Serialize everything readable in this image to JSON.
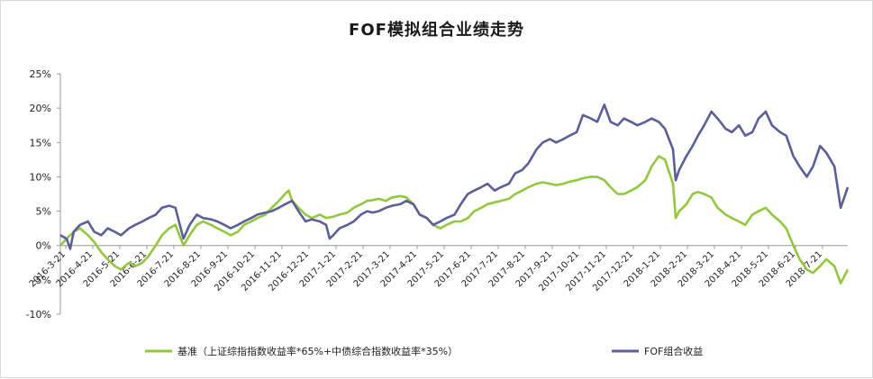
{
  "chart_data": {
    "type": "line",
    "title": "FOF模拟组合业绩走势",
    "xlabel": "",
    "ylabel": "",
    "ylim": [
      -0.1,
      0.25
    ],
    "yticks": [
      -0.1,
      -0.05,
      0.0,
      0.05,
      0.1,
      0.15,
      0.2,
      0.25
    ],
    "ytick_labels": [
      "-10%",
      "-5%",
      "0%",
      "5%",
      "10%",
      "15%",
      "20%",
      "25%"
    ],
    "xlim": [
      "2016-03-21",
      "2018-08-21"
    ],
    "xtick_labels": [
      "2016-3-21",
      "2016-4-21",
      "2016-5-21",
      "2016-6-21",
      "2016-7-21",
      "2016-8-21",
      "2016-9-21",
      "2016-10-21",
      "2016-11-21",
      "2016-12-21",
      "2017-1-21",
      "2017-2-21",
      "2017-3-21",
      "2017-4-21",
      "2017-5-21",
      "2017-6-21",
      "2017-7-21",
      "2017-8-21",
      "2017-9-21",
      "2017-10-21",
      "2017-11-21",
      "2017-12-21",
      "2018-1-21",
      "2018-2-21",
      "2018-3-21",
      "2018-4-21",
      "2018-5-21",
      "2018-6-21",
      "2018-7-21"
    ],
    "grid": false,
    "legend_position": "bottom",
    "series": [
      {
        "name": "基准（上证综指指数收益率*65%+中债综合指数收益率*35%）",
        "color": "#92c83e",
        "points": [
          [
            "2016-03-21",
            0.0
          ],
          [
            "2016-03-28",
            0.01
          ],
          [
            "2016-04-05",
            0.02
          ],
          [
            "2016-04-12",
            0.025
          ],
          [
            "2016-04-21",
            0.015
          ],
          [
            "2016-04-28",
            0.005
          ],
          [
            "2016-05-06",
            -0.01
          ],
          [
            "2016-05-13",
            -0.02
          ],
          [
            "2016-05-21",
            -0.03
          ],
          [
            "2016-05-28",
            -0.035
          ],
          [
            "2016-06-06",
            -0.025
          ],
          [
            "2016-06-13",
            -0.03
          ],
          [
            "2016-06-21",
            -0.025
          ],
          [
            "2016-06-28",
            -0.015
          ],
          [
            "2016-07-06",
            0.0
          ],
          [
            "2016-07-13",
            0.015
          ],
          [
            "2016-07-21",
            0.025
          ],
          [
            "2016-07-28",
            0.03
          ],
          [
            "2016-08-06",
            0.0
          ],
          [
            "2016-08-13",
            0.015
          ],
          [
            "2016-08-21",
            0.03
          ],
          [
            "2016-08-28",
            0.035
          ],
          [
            "2016-09-06",
            0.03
          ],
          [
            "2016-09-13",
            0.025
          ],
          [
            "2016-09-21",
            0.02
          ],
          [
            "2016-09-28",
            0.015
          ],
          [
            "2016-10-06",
            0.02
          ],
          [
            "2016-10-13",
            0.03
          ],
          [
            "2016-10-21",
            0.035
          ],
          [
            "2016-10-28",
            0.04
          ],
          [
            "2016-11-06",
            0.045
          ],
          [
            "2016-11-13",
            0.055
          ],
          [
            "2016-11-21",
            0.065
          ],
          [
            "2016-11-28",
            0.075
          ],
          [
            "2016-12-02",
            0.08
          ],
          [
            "2016-12-06",
            0.065
          ],
          [
            "2016-12-13",
            0.055
          ],
          [
            "2016-12-21",
            0.045
          ],
          [
            "2016-12-28",
            0.04
          ],
          [
            "2017-01-06",
            0.045
          ],
          [
            "2017-01-13",
            0.04
          ],
          [
            "2017-01-21",
            0.042
          ],
          [
            "2017-01-28",
            0.045
          ],
          [
            "2017-02-06",
            0.048
          ],
          [
            "2017-02-13",
            0.055
          ],
          [
            "2017-02-21",
            0.06
          ],
          [
            "2017-02-28",
            0.065
          ],
          [
            "2017-03-06",
            0.066
          ],
          [
            "2017-03-13",
            0.068
          ],
          [
            "2017-03-21",
            0.065
          ],
          [
            "2017-03-28",
            0.07
          ],
          [
            "2017-04-06",
            0.072
          ],
          [
            "2017-04-13",
            0.07
          ],
          [
            "2017-04-21",
            0.06
          ],
          [
            "2017-04-28",
            0.045
          ],
          [
            "2017-05-06",
            0.04
          ],
          [
            "2017-05-13",
            0.03
          ],
          [
            "2017-05-21",
            0.025
          ],
          [
            "2017-05-28",
            0.03
          ],
          [
            "2017-06-06",
            0.035
          ],
          [
            "2017-06-13",
            0.035
          ],
          [
            "2017-06-21",
            0.04
          ],
          [
            "2017-06-28",
            0.05
          ],
          [
            "2017-07-06",
            0.055
          ],
          [
            "2017-07-13",
            0.06
          ],
          [
            "2017-07-21",
            0.063
          ],
          [
            "2017-07-28",
            0.065
          ],
          [
            "2017-08-06",
            0.068
          ],
          [
            "2017-08-13",
            0.075
          ],
          [
            "2017-08-21",
            0.08
          ],
          [
            "2017-08-28",
            0.085
          ],
          [
            "2017-09-06",
            0.09
          ],
          [
            "2017-09-13",
            0.092
          ],
          [
            "2017-09-21",
            0.09
          ],
          [
            "2017-09-28",
            0.088
          ],
          [
            "2017-10-06",
            0.09
          ],
          [
            "2017-10-13",
            0.093
          ],
          [
            "2017-10-21",
            0.095
          ],
          [
            "2017-10-28",
            0.098
          ],
          [
            "2017-11-06",
            0.1
          ],
          [
            "2017-11-13",
            0.1
          ],
          [
            "2017-11-21",
            0.095
          ],
          [
            "2017-11-28",
            0.085
          ],
          [
            "2017-12-06",
            0.075
          ],
          [
            "2017-12-13",
            0.075
          ],
          [
            "2017-12-21",
            0.08
          ],
          [
            "2017-12-28",
            0.085
          ],
          [
            "2018-01-06",
            0.095
          ],
          [
            "2018-01-13",
            0.115
          ],
          [
            "2018-01-21",
            0.13
          ],
          [
            "2018-01-28",
            0.125
          ],
          [
            "2018-02-06",
            0.09
          ],
          [
            "2018-02-09",
            0.04
          ],
          [
            "2018-02-13",
            0.05
          ],
          [
            "2018-02-21",
            0.06
          ],
          [
            "2018-02-28",
            0.075
          ],
          [
            "2018-03-06",
            0.078
          ],
          [
            "2018-03-13",
            0.075
          ],
          [
            "2018-03-21",
            0.07
          ],
          [
            "2018-03-28",
            0.055
          ],
          [
            "2018-04-06",
            0.045
          ],
          [
            "2018-04-13",
            0.04
          ],
          [
            "2018-04-21",
            0.035
          ],
          [
            "2018-04-28",
            0.03
          ],
          [
            "2018-05-06",
            0.045
          ],
          [
            "2018-05-13",
            0.05
          ],
          [
            "2018-05-21",
            0.055
          ],
          [
            "2018-05-28",
            0.045
          ],
          [
            "2018-06-06",
            0.035
          ],
          [
            "2018-06-13",
            0.025
          ],
          [
            "2018-06-21",
            0.0
          ],
          [
            "2018-06-28",
            -0.02
          ],
          [
            "2018-07-06",
            -0.035
          ],
          [
            "2018-07-13",
            -0.04
          ],
          [
            "2018-07-21",
            -0.03
          ],
          [
            "2018-07-28",
            -0.02
          ],
          [
            "2018-08-06",
            -0.03
          ],
          [
            "2018-08-13",
            -0.055
          ],
          [
            "2018-08-21",
            -0.035
          ]
        ]
      },
      {
        "name": "FOF组合收益",
        "color": "#5b5f97",
        "points": [
          [
            "2016-03-21",
            0.015
          ],
          [
            "2016-03-28",
            0.01
          ],
          [
            "2016-04-01",
            -0.005
          ],
          [
            "2016-04-05",
            0.02
          ],
          [
            "2016-04-12",
            0.03
          ],
          [
            "2016-04-21",
            0.035
          ],
          [
            "2016-04-28",
            0.02
          ],
          [
            "2016-05-06",
            0.015
          ],
          [
            "2016-05-13",
            0.025
          ],
          [
            "2016-05-21",
            0.02
          ],
          [
            "2016-05-28",
            0.015
          ],
          [
            "2016-06-06",
            0.025
          ],
          [
            "2016-06-13",
            0.03
          ],
          [
            "2016-06-21",
            0.035
          ],
          [
            "2016-06-28",
            0.04
          ],
          [
            "2016-07-06",
            0.045
          ],
          [
            "2016-07-13",
            0.055
          ],
          [
            "2016-07-21",
            0.058
          ],
          [
            "2016-07-28",
            0.055
          ],
          [
            "2016-08-06",
            0.01
          ],
          [
            "2016-08-13",
            0.03
          ],
          [
            "2016-08-21",
            0.045
          ],
          [
            "2016-08-28",
            0.04
          ],
          [
            "2016-09-06",
            0.038
          ],
          [
            "2016-09-13",
            0.035
          ],
          [
            "2016-09-21",
            0.03
          ],
          [
            "2016-09-28",
            0.025
          ],
          [
            "2016-10-06",
            0.03
          ],
          [
            "2016-10-13",
            0.035
          ],
          [
            "2016-10-21",
            0.04
          ],
          [
            "2016-10-28",
            0.045
          ],
          [
            "2016-11-06",
            0.048
          ],
          [
            "2016-11-13",
            0.05
          ],
          [
            "2016-11-21",
            0.055
          ],
          [
            "2016-11-28",
            0.06
          ],
          [
            "2016-12-06",
            0.065
          ],
          [
            "2016-12-13",
            0.05
          ],
          [
            "2016-12-21",
            0.035
          ],
          [
            "2016-12-28",
            0.038
          ],
          [
            "2017-01-06",
            0.035
          ],
          [
            "2017-01-13",
            0.03
          ],
          [
            "2017-01-17",
            0.01
          ],
          [
            "2017-01-21",
            0.015
          ],
          [
            "2017-01-28",
            0.025
          ],
          [
            "2017-02-06",
            0.03
          ],
          [
            "2017-02-13",
            0.035
          ],
          [
            "2017-02-21",
            0.045
          ],
          [
            "2017-02-28",
            0.05
          ],
          [
            "2017-03-06",
            0.048
          ],
          [
            "2017-03-13",
            0.05
          ],
          [
            "2017-03-21",
            0.055
          ],
          [
            "2017-03-28",
            0.058
          ],
          [
            "2017-04-06",
            0.06
          ],
          [
            "2017-04-13",
            0.065
          ],
          [
            "2017-04-21",
            0.06
          ],
          [
            "2017-04-28",
            0.045
          ],
          [
            "2017-05-06",
            0.04
          ],
          [
            "2017-05-13",
            0.03
          ],
          [
            "2017-05-21",
            0.035
          ],
          [
            "2017-05-28",
            0.04
          ],
          [
            "2017-06-06",
            0.045
          ],
          [
            "2017-06-13",
            0.06
          ],
          [
            "2017-06-21",
            0.075
          ],
          [
            "2017-06-28",
            0.08
          ],
          [
            "2017-07-06",
            0.085
          ],
          [
            "2017-07-13",
            0.09
          ],
          [
            "2017-07-21",
            0.08
          ],
          [
            "2017-07-28",
            0.085
          ],
          [
            "2017-08-06",
            0.09
          ],
          [
            "2017-08-13",
            0.105
          ],
          [
            "2017-08-21",
            0.11
          ],
          [
            "2017-08-28",
            0.12
          ],
          [
            "2017-09-06",
            0.14
          ],
          [
            "2017-09-13",
            0.15
          ],
          [
            "2017-09-21",
            0.155
          ],
          [
            "2017-09-28",
            0.15
          ],
          [
            "2017-10-06",
            0.155
          ],
          [
            "2017-10-13",
            0.16
          ],
          [
            "2017-10-21",
            0.165
          ],
          [
            "2017-10-28",
            0.19
          ],
          [
            "2017-11-06",
            0.185
          ],
          [
            "2017-11-13",
            0.18
          ],
          [
            "2017-11-21",
            0.205
          ],
          [
            "2017-11-28",
            0.18
          ],
          [
            "2017-12-06",
            0.175
          ],
          [
            "2017-12-13",
            0.185
          ],
          [
            "2017-12-21",
            0.18
          ],
          [
            "2017-12-28",
            0.175
          ],
          [
            "2018-01-06",
            0.18
          ],
          [
            "2018-01-13",
            0.185
          ],
          [
            "2018-01-21",
            0.18
          ],
          [
            "2018-01-28",
            0.17
          ],
          [
            "2018-02-06",
            0.14
          ],
          [
            "2018-02-09",
            0.095
          ],
          [
            "2018-02-13",
            0.11
          ],
          [
            "2018-02-21",
            0.13
          ],
          [
            "2018-02-28",
            0.145
          ],
          [
            "2018-03-06",
            0.16
          ],
          [
            "2018-03-13",
            0.175
          ],
          [
            "2018-03-21",
            0.195
          ],
          [
            "2018-03-28",
            0.185
          ],
          [
            "2018-04-06",
            0.17
          ],
          [
            "2018-04-13",
            0.165
          ],
          [
            "2018-04-21",
            0.175
          ],
          [
            "2018-04-28",
            0.16
          ],
          [
            "2018-05-06",
            0.165
          ],
          [
            "2018-05-13",
            0.185
          ],
          [
            "2018-05-21",
            0.195
          ],
          [
            "2018-05-28",
            0.175
          ],
          [
            "2018-06-06",
            0.165
          ],
          [
            "2018-06-13",
            0.16
          ],
          [
            "2018-06-21",
            0.13
          ],
          [
            "2018-06-28",
            0.115
          ],
          [
            "2018-07-06",
            0.1
          ],
          [
            "2018-07-13",
            0.115
          ],
          [
            "2018-07-21",
            0.145
          ],
          [
            "2018-07-28",
            0.135
          ],
          [
            "2018-08-06",
            0.115
          ],
          [
            "2018-08-13",
            0.055
          ],
          [
            "2018-08-21",
            0.085
          ]
        ]
      }
    ]
  }
}
